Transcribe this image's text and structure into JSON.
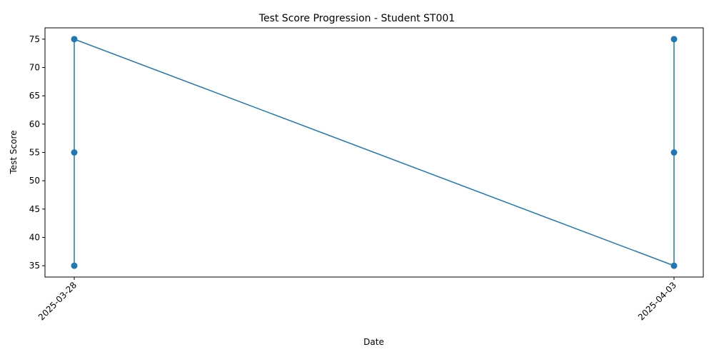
{
  "chart_data": {
    "type": "line",
    "title": "Test Score Progression - Student ST001",
    "xlabel": "Date",
    "ylabel": "Test Score",
    "x_ticks": [
      "2025-03-28",
      "2025-04-03"
    ],
    "y_ticks": [
      35,
      40,
      45,
      50,
      55,
      60,
      65,
      70,
      75
    ],
    "ylim": [
      33,
      77
    ],
    "grid": false,
    "legend": "none",
    "series": [
      {
        "color": "#1f77b4",
        "marker": "circle",
        "points": [
          {
            "x": "2025-03-28",
            "y": 35
          },
          {
            "x": "2025-03-28",
            "y": 55
          },
          {
            "x": "2025-03-28",
            "y": 75
          },
          {
            "x": "2025-04-03",
            "y": 35
          },
          {
            "x": "2025-04-03",
            "y": 55
          },
          {
            "x": "2025-04-03",
            "y": 75
          }
        ]
      }
    ]
  }
}
